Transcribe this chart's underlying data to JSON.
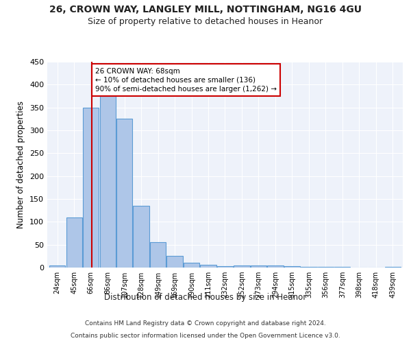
{
  "title1": "26, CROWN WAY, LANGLEY MILL, NOTTINGHAM, NG16 4GU",
  "title2": "Size of property relative to detached houses in Heanor",
  "xlabel": "Distribution of detached houses by size in Heanor",
  "ylabel": "Number of detached properties",
  "footer1": "Contains HM Land Registry data © Crown copyright and database right 2024.",
  "footer2": "Contains public sector information licensed under the Open Government Licence v3.0.",
  "bar_labels": [
    "24sqm",
    "45sqm",
    "66sqm",
    "86sqm",
    "107sqm",
    "128sqm",
    "149sqm",
    "169sqm",
    "190sqm",
    "211sqm",
    "232sqm",
    "252sqm",
    "273sqm",
    "294sqm",
    "315sqm",
    "335sqm",
    "356sqm",
    "377sqm",
    "398sqm",
    "418sqm",
    "439sqm"
  ],
  "bar_values": [
    5,
    110,
    350,
    375,
    325,
    135,
    55,
    25,
    10,
    6,
    3,
    5,
    5,
    5,
    3,
    1,
    1,
    1,
    0,
    0,
    2
  ],
  "bar_color": "#aec6e8",
  "bar_edgecolor": "#5b9bd5",
  "vline_x_index": 2.05,
  "vline_color": "#cc0000",
  "annotation_text": "26 CROWN WAY: 68sqm\n← 10% of detached houses are smaller (136)\n90% of semi-detached houses are larger (1,262) →",
  "annotation_box_color": "#ffffff",
  "annotation_box_edgecolor": "#cc0000",
  "ylim": [
    0,
    450
  ],
  "yticks": [
    0,
    50,
    100,
    150,
    200,
    250,
    300,
    350,
    400,
    450
  ],
  "background_color": "#eef2fa",
  "grid_color": "#ffffff",
  "title1_fontsize": 10,
  "title2_fontsize": 9,
  "xlabel_fontsize": 8.5,
  "ylabel_fontsize": 8.5
}
